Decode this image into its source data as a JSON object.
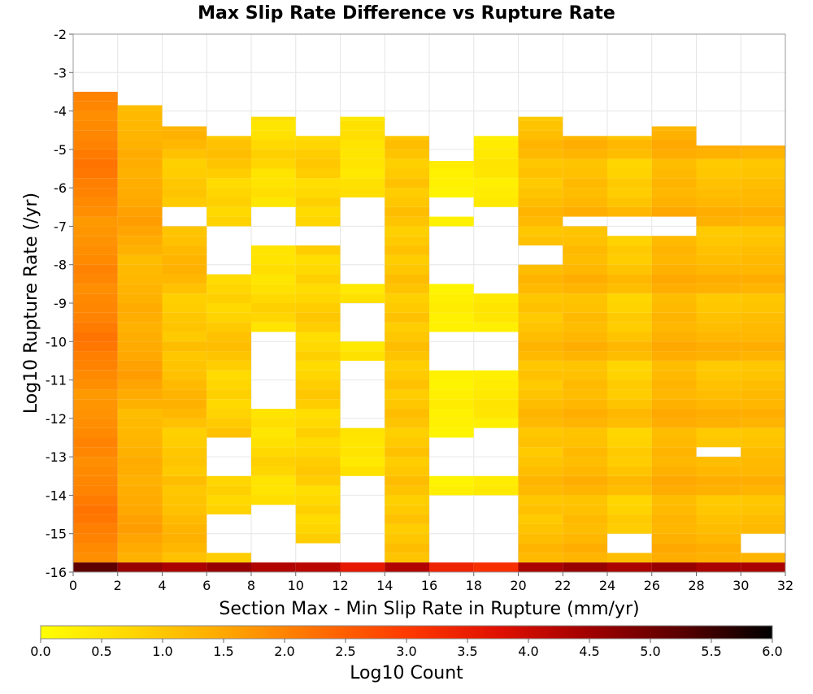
{
  "chart_data": {
    "type": "heatmap",
    "title": "Max Slip Rate Difference vs Rupture Rate",
    "xlabel": "Section Max - Min Slip Rate in Rupture (mm/yr)",
    "ylabel": "Log10 Rupture Rate (/yr)",
    "xlim": [
      0,
      32
    ],
    "ylim": [
      -16,
      -2
    ],
    "x_ticks": [
      "0",
      "2",
      "4",
      "6",
      "8",
      "10",
      "12",
      "14",
      "16",
      "18",
      "20",
      "22",
      "24",
      "26",
      "28",
      "30",
      "32"
    ],
    "y_ticks": [
      "-2",
      "-3",
      "-4",
      "-5",
      "-6",
      "-7",
      "-8",
      "-9",
      "-10",
      "-11",
      "-12",
      "-13",
      "-14",
      "-15",
      "-16"
    ],
    "x_bin_width": 2,
    "y_bin_height": 0.25,
    "grid": true,
    "colorbar": {
      "label": "Log10 Count",
      "range": [
        0,
        6
      ],
      "ticks": [
        "0.0",
        "0.5",
        "1.0",
        "1.5",
        "2.0",
        "2.5",
        "3.0",
        "3.5",
        "4.0",
        "4.5",
        "5.0",
        "5.5",
        "6.0"
      ],
      "stops": [
        "#ffff00",
        "#ffd600",
        "#ffa800",
        "#ff7000",
        "#ff3a00",
        "#e01000",
        "#a00000",
        "#5a0000",
        "#000000"
      ]
    },
    "columns": [
      {
        "x0": 0,
        "top": -3.5,
        "level": 2.0,
        "bottom": 5.2,
        "pattern": [
          1.7,
          1.8,
          2.0,
          2.1,
          2.3,
          2.4,
          2.2,
          2.0,
          1.9,
          1.8,
          1.7,
          1.9,
          2.0,
          1.8,
          1.7,
          1.6,
          1.5,
          1.4
        ]
      },
      {
        "x0": 2,
        "top": -3.85,
        "level": 1.5,
        "bottom": 4.6,
        "pattern": [
          1.2,
          1.4,
          1.6,
          1.8,
          1.7,
          1.5,
          1.4,
          1.3,
          1.2,
          1.3,
          1.4,
          1.2,
          1.1,
          1.0,
          0.9,
          0.8
        ]
      },
      {
        "x0": 4,
        "top": -4.4,
        "level": 1.2,
        "bottom": 4.4,
        "pattern": [
          1.0,
          1.3,
          1.5,
          1.4,
          1.2,
          1.0,
          0.9,
          0.8,
          1.1,
          0.7,
          0.9,
          0.8,
          0.6,
          0.5
        ]
      },
      {
        "x0": 6,
        "top": -4.65,
        "level": 0.9,
        "bottom": 4.6,
        "pattern": [
          0.9,
          1.2,
          1.4,
          1.3,
          1.0,
          0.7,
          0.5,
          0.8,
          0.6,
          0.4
        ]
      },
      {
        "x0": 8,
        "top": -4.15,
        "level": 0.6,
        "bottom": 4.3,
        "pattern": [
          0.4,
          0.9,
          1.1,
          0.8,
          0.5,
          0.3,
          0.6,
          0.4
        ]
      },
      {
        "x0": 10,
        "top": -4.65,
        "level": 0.8,
        "bottom": 4.2,
        "pattern": [
          1.0,
          1.2,
          1.0,
          0.7,
          0.5,
          0.9,
          0.6,
          0.4
        ]
      },
      {
        "x0": 12,
        "top": -4.15,
        "level": 0.5,
        "bottom": 3.6,
        "pattern": [
          0.4,
          0.5,
          0.7,
          0.6,
          0.3,
          0.5
        ]
      },
      {
        "x0": 14,
        "top": -4.65,
        "level": 1.0,
        "bottom": 4.3,
        "pattern": [
          1.1,
          1.3,
          1.0,
          0.8,
          1.2,
          0.9,
          0.7
        ]
      },
      {
        "x0": 16,
        "top": -5.3,
        "level": 0.3,
        "bottom": 3.4,
        "pattern": [
          0.2,
          0.4,
          0.3,
          0.1,
          0.2
        ]
      },
      {
        "x0": 18,
        "top": -4.65,
        "level": 0.4,
        "bottom": 3.2,
        "pattern": [
          0.5,
          0.6,
          0.4,
          0.3,
          0.2
        ]
      },
      {
        "x0": 20,
        "top": -4.15,
        "level": 1.1,
        "bottom": 4.4,
        "pattern": [
          1.3,
          1.5,
          1.2,
          1.0,
          0.8,
          1.1,
          0.9
        ]
      },
      {
        "x0": 22,
        "top": -4.65,
        "level": 1.2,
        "bottom": 4.6,
        "pattern": [
          1.4,
          1.6,
          1.3,
          1.1,
          1.2,
          1.0,
          0.9
        ]
      },
      {
        "x0": 24,
        "top": -4.65,
        "level": 1.0,
        "bottom": 4.4,
        "pattern": [
          1.3,
          1.5,
          1.1,
          0.8,
          0.9,
          0.6,
          0.5
        ]
      },
      {
        "x0": 26,
        "top": -4.4,
        "level": 1.3,
        "bottom": 4.6,
        "pattern": [
          1.5,
          1.7,
          1.4,
          1.2,
          1.3,
          1.1,
          1.0
        ]
      },
      {
        "x0": 28,
        "top": -4.9,
        "level": 1.2,
        "bottom": 4.4,
        "pattern": [
          1.5,
          1.6,
          1.3,
          1.1,
          1.0,
          0.8,
          0.7
        ]
      },
      {
        "x0": 30,
        "top": -4.9,
        "level": 1.2,
        "bottom": 4.4,
        "pattern": [
          1.4,
          1.6,
          1.3,
          1.2,
          1.1,
          0.9,
          0.8
        ]
      }
    ],
    "gaps": [
      {
        "x0": 4,
        "y": [
          -7.1,
          -6.6
        ]
      },
      {
        "x0": 6,
        "y": [
          -8.2,
          -7.0
        ]
      },
      {
        "x0": 6,
        "y": [
          -13.6,
          -12.6
        ]
      },
      {
        "x0": 6,
        "y": [
          -15.6,
          -14.6
        ]
      },
      {
        "x0": 8,
        "y": [
          -7.4,
          -6.4
        ]
      },
      {
        "x0": 8,
        "y": [
          -11.8,
          -9.8
        ]
      },
      {
        "x0": 8,
        "y": [
          -16.0,
          -14.2
        ]
      },
      {
        "x0": 10,
        "y": [
          -7.6,
          -6.9
        ]
      },
      {
        "x0": 10,
        "y": [
          -16.0,
          -15.2
        ]
      },
      {
        "x0": 12,
        "y": [
          -8.5,
          -6.2
        ]
      },
      {
        "x0": 12,
        "y": [
          -9.9,
          -8.9
        ]
      },
      {
        "x0": 12,
        "y": [
          -11.2,
          -10.5
        ]
      },
      {
        "x0": 12,
        "y": [
          -12.2,
          -11.3
        ]
      },
      {
        "x0": 12,
        "y": [
          -15.7,
          -13.6
        ]
      },
      {
        "x0": 16,
        "y": [
          -6.8,
          -6.2
        ]
      },
      {
        "x0": 16,
        "y": [
          -8.5,
          -7.0
        ]
      },
      {
        "x0": 16,
        "y": [
          -10.8,
          -9.8
        ]
      },
      {
        "x0": 16,
        "y": [
          -13.6,
          -12.5
        ]
      },
      {
        "x0": 16,
        "y": [
          -16.0,
          -14.0
        ]
      },
      {
        "x0": 18,
        "y": [
          -8.7,
          -6.4
        ]
      },
      {
        "x0": 18,
        "y": [
          -10.8,
          -9.8
        ]
      },
      {
        "x0": 18,
        "y": [
          -13.4,
          -12.2
        ]
      },
      {
        "x0": 18,
        "y": [
          -15.7,
          -14.1
        ]
      },
      {
        "x0": 20,
        "y": [
          -8.0,
          -7.6
        ]
      },
      {
        "x0": 22,
        "y": [
          -7.1,
          -6.7
        ]
      },
      {
        "x0": 24,
        "y": [
          -7.2,
          -6.7
        ]
      },
      {
        "x0": 24,
        "y": [
          -15.4,
          -15.1
        ]
      },
      {
        "x0": 26,
        "y": [
          -7.2,
          -6.7
        ]
      },
      {
        "x0": 28,
        "y": [
          -13.1,
          -12.8
        ]
      },
      {
        "x0": 30,
        "y": [
          -15.4,
          -15.1
        ]
      }
    ]
  }
}
